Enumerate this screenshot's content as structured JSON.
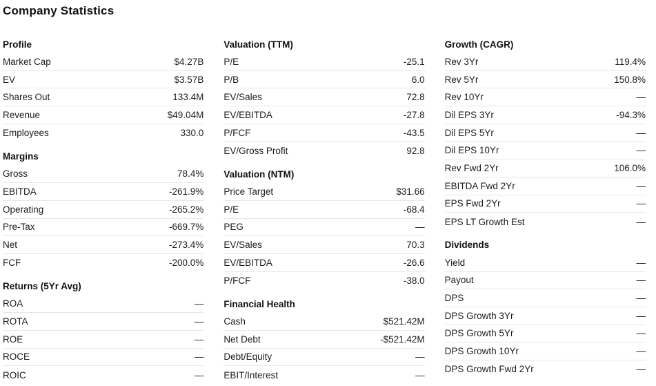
{
  "page": {
    "title": "Company Statistics"
  },
  "colors": {
    "background": "#ffffff",
    "text": "#1b1b1b",
    "heading": "#111111",
    "divider": "#e7e7e7"
  },
  "missing_value_glyph": "—",
  "columns": [
    {
      "sections": [
        {
          "title": "Profile",
          "rows": [
            {
              "label": "Market Cap",
              "value": "$4.27B"
            },
            {
              "label": "EV",
              "value": "$3.57B"
            },
            {
              "label": "Shares Out",
              "value": "133.4M"
            },
            {
              "label": "Revenue",
              "value": "$49.04M"
            },
            {
              "label": "Employees",
              "value": "330.0"
            }
          ]
        },
        {
          "title": "Margins",
          "rows": [
            {
              "label": "Gross",
              "value": "78.4%"
            },
            {
              "label": "EBITDA",
              "value": "-261.9%"
            },
            {
              "label": "Operating",
              "value": "-265.2%"
            },
            {
              "label": "Pre-Tax",
              "value": "-669.7%"
            },
            {
              "label": "Net",
              "value": "-273.4%"
            },
            {
              "label": "FCF",
              "value": "-200.0%"
            }
          ]
        },
        {
          "title": "Returns (5Yr Avg)",
          "rows": [
            {
              "label": "ROA",
              "value": "—"
            },
            {
              "label": "ROTA",
              "value": "—"
            },
            {
              "label": "ROE",
              "value": "—"
            },
            {
              "label": "ROCE",
              "value": "—"
            },
            {
              "label": "ROIC",
              "value": "—"
            }
          ]
        }
      ]
    },
    {
      "sections": [
        {
          "title": "Valuation (TTM)",
          "rows": [
            {
              "label": "P/E",
              "value": "-25.1"
            },
            {
              "label": "P/B",
              "value": "6.0"
            },
            {
              "label": "EV/Sales",
              "value": "72.8"
            },
            {
              "label": "EV/EBITDA",
              "value": "-27.8"
            },
            {
              "label": "P/FCF",
              "value": "-43.5"
            },
            {
              "label": "EV/Gross Profit",
              "value": "92.8"
            }
          ]
        },
        {
          "title": "Valuation (NTM)",
          "rows": [
            {
              "label": "Price Target",
              "value": "$31.66"
            },
            {
              "label": "P/E",
              "value": "-68.4"
            },
            {
              "label": "PEG",
              "value": "—"
            },
            {
              "label": "EV/Sales",
              "value": "70.3"
            },
            {
              "label": "EV/EBITDA",
              "value": "-26.6"
            },
            {
              "label": "P/FCF",
              "value": "-38.0"
            }
          ]
        },
        {
          "title": "Financial Health",
          "rows": [
            {
              "label": "Cash",
              "value": "$521.42M"
            },
            {
              "label": "Net Debt",
              "value": "-$521.42M"
            },
            {
              "label": "Debt/Equity",
              "value": "—"
            },
            {
              "label": "EBIT/Interest",
              "value": "—"
            }
          ]
        }
      ]
    },
    {
      "sections": [
        {
          "title": "Growth (CAGR)",
          "rows": [
            {
              "label": "Rev 3Yr",
              "value": "119.4%"
            },
            {
              "label": "Rev 5Yr",
              "value": "150.8%"
            },
            {
              "label": "Rev 10Yr",
              "value": "—"
            },
            {
              "label": "Dil EPS 3Yr",
              "value": "-94.3%"
            },
            {
              "label": "Dil EPS 5Yr",
              "value": "—"
            },
            {
              "label": "Dil EPS 10Yr",
              "value": "—"
            },
            {
              "label": "Rev Fwd 2Yr",
              "value": "106.0%"
            },
            {
              "label": "EBITDA Fwd 2Yr",
              "value": "—"
            },
            {
              "label": "EPS Fwd 2Yr",
              "value": "—"
            },
            {
              "label": "EPS LT Growth Est",
              "value": "—"
            }
          ]
        },
        {
          "title": "Dividends",
          "rows": [
            {
              "label": "Yield",
              "value": "—"
            },
            {
              "label": "Payout",
              "value": "—"
            },
            {
              "label": "DPS",
              "value": "—"
            },
            {
              "label": "DPS Growth 3Yr",
              "value": "—"
            },
            {
              "label": "DPS Growth 5Yr",
              "value": "—"
            },
            {
              "label": "DPS Growth 10Yr",
              "value": "—"
            },
            {
              "label": "DPS Growth Fwd 2Yr",
              "value": "—"
            }
          ]
        }
      ]
    }
  ]
}
